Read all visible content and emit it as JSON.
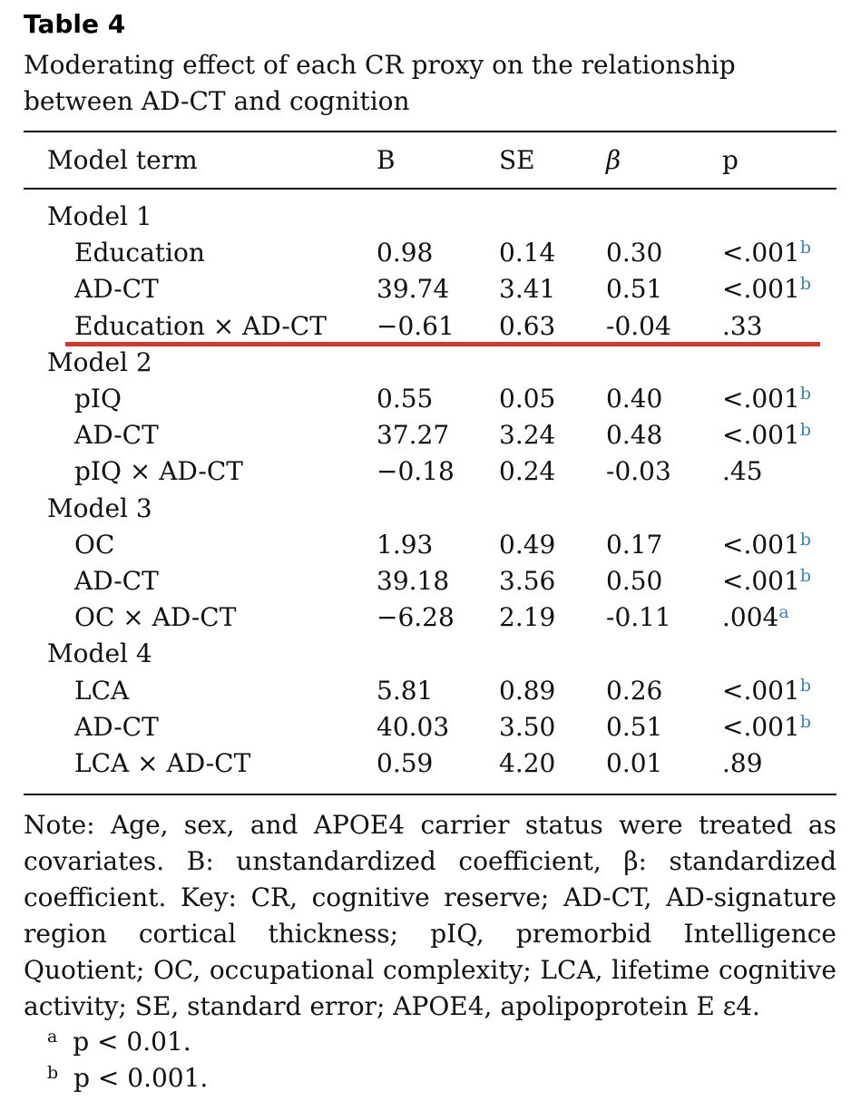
{
  "caption": {
    "label": "Table 4",
    "text": "Moderating effect of each CR proxy on the relationship between AD-CT and cognition"
  },
  "table": {
    "headers": [
      "Model term",
      "B",
      "SE",
      "β",
      "p"
    ],
    "groups": [
      {
        "label": "Model 1",
        "rows": [
          {
            "term": "Education",
            "b": "0.98",
            "se": "0.14",
            "beta": "0.30",
            "p": "<.001",
            "sup": "b"
          },
          {
            "term": "AD-CT",
            "b": "39.74",
            "se": "3.41",
            "beta": "0.51",
            "p": "<.001",
            "sup": "b"
          },
          {
            "term": "Education × AD-CT",
            "b": "−0.61",
            "se": "0.63",
            "beta": "-0.04",
            "p": ".33",
            "sup": ""
          }
        ]
      },
      {
        "label": "Model 2",
        "rows": [
          {
            "term": "pIQ",
            "b": "0.55",
            "se": "0.05",
            "beta": "0.40",
            "p": "<.001",
            "sup": "b"
          },
          {
            "term": "AD-CT",
            "b": "37.27",
            "se": "3.24",
            "beta": "0.48",
            "p": "<.001",
            "sup": "b"
          },
          {
            "term": "pIQ × AD-CT",
            "b": "−0.18",
            "se": "0.24",
            "beta": "-0.03",
            "p": ".45",
            "sup": ""
          }
        ]
      },
      {
        "label": "Model 3",
        "rows": [
          {
            "term": "OC",
            "b": "1.93",
            "se": "0.49",
            "beta": "0.17",
            "p": "<.001",
            "sup": "b"
          },
          {
            "term": "AD-CT",
            "b": "39.18",
            "se": "3.56",
            "beta": "0.50",
            "p": "<.001",
            "sup": "b"
          },
          {
            "term": "OC × AD-CT",
            "b": "−6.28",
            "se": "2.19",
            "beta": "-0.11",
            "p": ".004",
            "sup": "a"
          }
        ]
      },
      {
        "label": "Model 4",
        "rows": [
          {
            "term": "LCA",
            "b": "5.81",
            "se": "0.89",
            "beta": "0.26",
            "p": "<.001",
            "sup": "b"
          },
          {
            "term": "AD-CT",
            "b": "40.03",
            "se": "3.50",
            "beta": "0.51",
            "p": "<.001",
            "sup": "b"
          },
          {
            "term": "LCA × AD-CT",
            "b": "0.59",
            "se": "4.20",
            "beta": "0.01",
            "p": ".89",
            "sup": ""
          }
        ]
      }
    ]
  },
  "note": "Note: Age, sex, and APOE4 carrier status were treated as covariates. B: unstandardized coefficient, β: standardized coefficient. Key: CR, cognitive reserve; AD-CT, AD-signature region cortical thickness; pIQ, premorbid Intelligence Quotient; OC, occupational complexity; LCA, lifetime cognitive activity; SE, standard error; APOE4, apolipoprotein E ε4.",
  "footnotes": [
    {
      "mark": "a",
      "text": "p < 0.01."
    },
    {
      "mark": "b",
      "text": "p < 0.001."
    }
  ],
  "colors": {
    "highlight": "#d03a2b",
    "superscript": "#3a82b8"
  }
}
